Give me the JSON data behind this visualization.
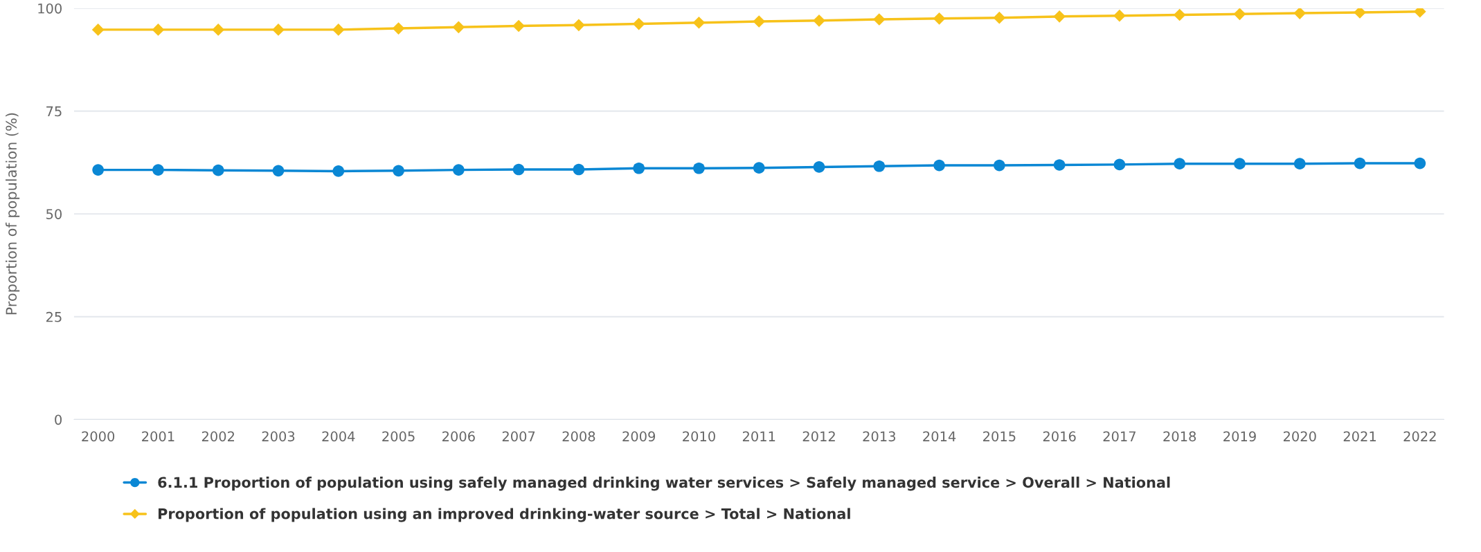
{
  "chart_data": {
    "type": "line",
    "ylabel": "Proportion of population (%)",
    "categories": [
      "2000",
      "2001",
      "2002",
      "2003",
      "2004",
      "2005",
      "2006",
      "2007",
      "2008",
      "2009",
      "2010",
      "2011",
      "2012",
      "2013",
      "2014",
      "2015",
      "2016",
      "2017",
      "2018",
      "2019",
      "2020",
      "2021",
      "2022"
    ],
    "series": [
      {
        "name": "6.1.1 Proportion of population using safely managed drinking water services > Safely managed service > Overall > National",
        "color": "#0a87d4",
        "marker": "circle",
        "values": [
          60.7,
          60.7,
          60.6,
          60.5,
          60.4,
          60.5,
          60.7,
          60.8,
          60.8,
          61.1,
          61.1,
          61.2,
          61.4,
          61.6,
          61.8,
          61.8,
          61.9,
          62.0,
          62.2,
          62.2,
          62.2,
          62.3,
          62.3
        ]
      },
      {
        "name": "Proportion of population using an improved drinking-water source > Total > National",
        "color": "#f7c21a",
        "marker": "diamond",
        "values": [
          94.8,
          94.8,
          94.8,
          94.8,
          94.8,
          95.1,
          95.4,
          95.7,
          95.9,
          96.2,
          96.5,
          96.8,
          97.0,
          97.3,
          97.5,
          97.7,
          98.0,
          98.2,
          98.4,
          98.6,
          98.8,
          99.0,
          99.2
        ]
      }
    ],
    "ylim": [
      0,
      100
    ],
    "yticks": [
      0,
      25,
      50,
      75,
      100
    ],
    "grid": "y",
    "legend": "bottom"
  }
}
